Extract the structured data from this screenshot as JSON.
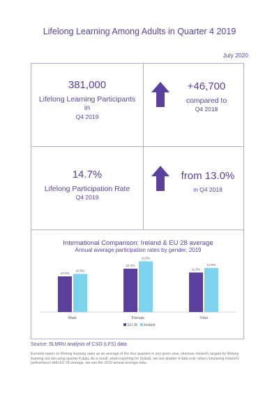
{
  "title": "Lifelong Learning Among Adults in Quarter 4 2019",
  "date": "July 2020",
  "stats": {
    "participants_value": "381,000",
    "participants_label_1": "Lifelong Learning Participants",
    "participants_label_2": "in",
    "participants_label_3": "Q4 2019",
    "change_value": "+46,700",
    "change_label_1": "compared to",
    "change_label_2": "Q4 2018",
    "rate_value": "14.7%",
    "rate_label_1": "Lifelong Participation Rate",
    "rate_label_2": "Q4 2019",
    "prev_value": "from 13.0%",
    "prev_label": "in Q4 2018"
  },
  "chart_data": {
    "type": "bar",
    "title": "International Comparison: Ireland & EU 28 average",
    "subtitle": "Annual average participation rates by gender, 2019",
    "categories": [
      "Male",
      "Female",
      "Total"
    ],
    "series": [
      {
        "name": "EU 28",
        "values": [
          10.2,
          12.4,
          11.3
        ],
        "labels": [
          "10.2%",
          "12.4%",
          "11.3%"
        ],
        "color": "#5b3f9c"
      },
      {
        "name": "Ireland",
        "values": [
          10.9,
          14.5,
          12.6
        ],
        "labels": [
          "10.9%",
          "14.5%",
          "12.6%"
        ],
        "color": "#7dd3ee"
      }
    ],
    "ylim": [
      0,
      16
    ],
    "grid": false,
    "legend": "bottom"
  },
  "colors": {
    "accent": "#5b3f9c",
    "teal": "#7dd3ee",
    "border": "#b7a9d6"
  },
  "source": "Source: SLMRU analysis of CSO (LFS) data",
  "note": "Eurostat report on lifelong learning rates as an average of the four quarters in any given year, whereas Ireland's targets for lifelong learning are set using quarter 4 data. As a result, when reporting for Ireland, we use quarter 4 data only; when comparing Ireland's performance with EU 28 average, we use the 2019 annual average data."
}
